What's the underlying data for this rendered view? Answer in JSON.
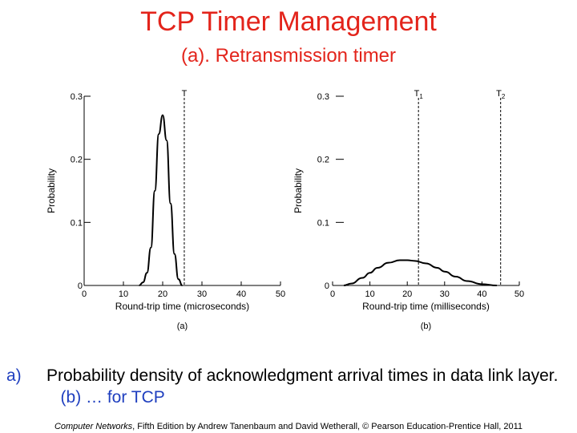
{
  "header": {
    "title": "TCP Timer Management",
    "subtitle": "(a). Retransmission timer"
  },
  "caption": {
    "marker": "a)",
    "text_main": "Probability density of acknowledgment arrival times in data link layer.",
    "text_blue": "(b) … for TCP"
  },
  "credit": {
    "book": "Computer Networks",
    "rest": ", Fifth Edition by Andrew Tanenbaum and David Wetherall, © Pearson Education-Prentice Hall, 2011"
  },
  "colors": {
    "title": "#e3241b",
    "caption_accent": "#1f3fbf"
  },
  "chart_data": [
    {
      "type": "line",
      "panel_label": "(a)",
      "xlabel": "Round-trip time (microseconds)",
      "ylabel": "Probability",
      "xlim": [
        0,
        50
      ],
      "ylim": [
        0,
        0.3
      ],
      "xticks": [
        0,
        10,
        20,
        30,
        40,
        50
      ],
      "yticks": [
        0,
        0.1,
        0.2,
        0.3
      ],
      "ytick_labels": [
        "0",
        "0.1",
        "0.2",
        "0.3"
      ],
      "series": [
        {
          "x": [
            14,
            15,
            16,
            17,
            18,
            19,
            20,
            21,
            22,
            23,
            24,
            25
          ],
          "y": [
            0,
            0.005,
            0.02,
            0.06,
            0.15,
            0.24,
            0.27,
            0.23,
            0.13,
            0.05,
            0.01,
            0
          ]
        }
      ],
      "markers": [
        {
          "label": "T",
          "sub": "",
          "x": 25.5
        }
      ]
    },
    {
      "type": "line",
      "panel_label": "(b)",
      "xlabel": "Round-trip time (milliseconds)",
      "ylabel": "Probability",
      "xlim": [
        0,
        50
      ],
      "ylim": [
        0,
        0.3
      ],
      "xticks": [
        0,
        10,
        20,
        30,
        40,
        50
      ],
      "yticks": [
        0,
        0.1,
        0.2,
        0.3
      ],
      "ytick_labels": [
        "0",
        "0.1",
        "0.2",
        "0.3"
      ],
      "series": [
        {
          "x": [
            3,
            5,
            8,
            10,
            12,
            15,
            18,
            20,
            22,
            25,
            28,
            30,
            33,
            36,
            40,
            44
          ],
          "y": [
            0,
            0.003,
            0.012,
            0.02,
            0.028,
            0.036,
            0.04,
            0.04,
            0.039,
            0.035,
            0.028,
            0.022,
            0.014,
            0.007,
            0.002,
            0
          ]
        }
      ],
      "markers": [
        {
          "label": "T",
          "sub": "1",
          "x": 23
        },
        {
          "label": "T",
          "sub": "2",
          "x": 45
        }
      ]
    }
  ]
}
